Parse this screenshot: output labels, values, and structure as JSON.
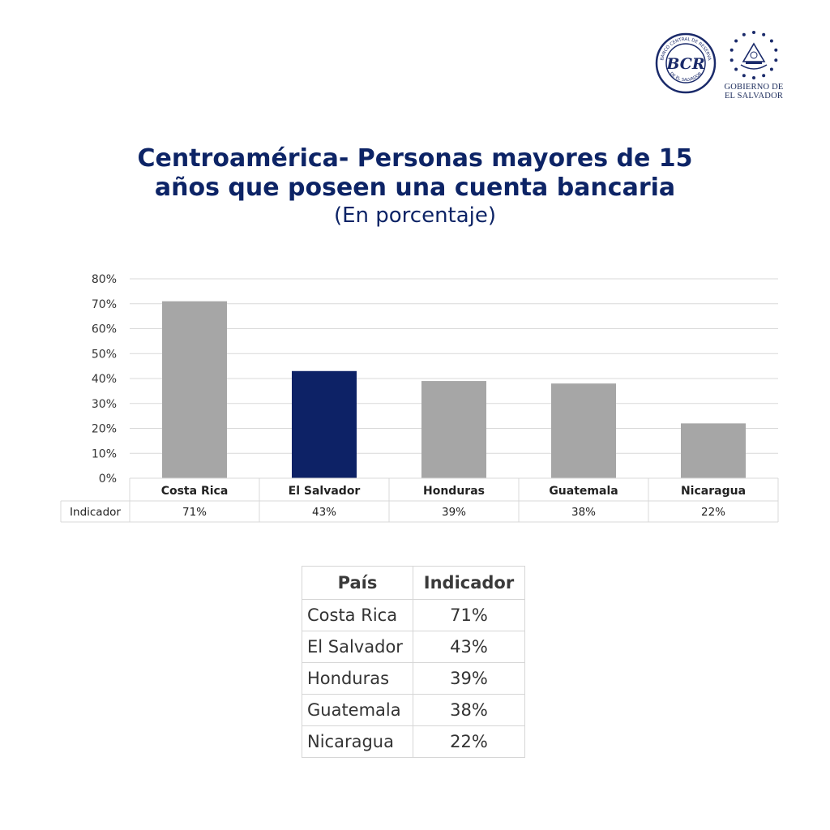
{
  "logos": {
    "bcr_initials": "BCR",
    "bcr_ring_text": "BANCO CENTRAL DE RESERVA",
    "bcr_ring_bottom": "DE EL SALVADOR",
    "gov_line1": "GOBIERNO DE",
    "gov_line2": "EL SALVADOR"
  },
  "title": "Centroamérica- Personas mayores de 15 años que poseen una cuenta bancaria",
  "subtitle": "(En porcentaje)",
  "colors": {
    "highlight": "#0d2266",
    "default": "#a6a6a6",
    "title": "#0d2466",
    "grid": "#d9d9d9"
  },
  "chart_data": {
    "type": "bar",
    "title": "Centroamérica- Personas mayores de 15 años que poseen una cuenta bancaria",
    "subtitle": "(En porcentaje)",
    "categories": [
      "Costa Rica",
      "El Salvador",
      "Honduras",
      "Guatemala",
      "Nicaragua"
    ],
    "series": [
      {
        "name": "Indicador",
        "values": [
          71,
          43,
          39,
          38,
          22
        ],
        "labels": [
          "71%",
          "43%",
          "39%",
          "38%",
          "22%"
        ]
      }
    ],
    "highlight_category": "El Salvador",
    "ylim": [
      0,
      80
    ],
    "yticks": [
      0,
      10,
      20,
      30,
      40,
      50,
      60,
      70,
      80
    ],
    "ytick_labels": [
      "0%",
      "10%",
      "20%",
      "30%",
      "40%",
      "50%",
      "60%",
      "70%",
      "80%"
    ],
    "grid": true,
    "data_table": true
  },
  "table": {
    "headers": [
      "País",
      "Indicador"
    ],
    "rows": [
      [
        "Costa Rica",
        "71%"
      ],
      [
        "El Salvador",
        "43%"
      ],
      [
        "Honduras",
        "39%"
      ],
      [
        "Guatemala",
        "38%"
      ],
      [
        "Nicaragua",
        "22%"
      ]
    ]
  }
}
